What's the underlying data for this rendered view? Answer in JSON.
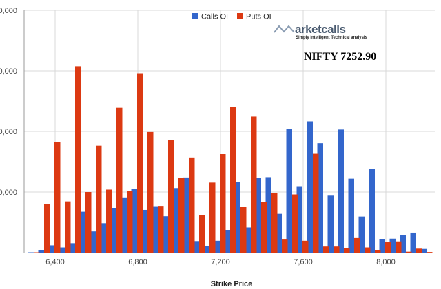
{
  "chart_data": {
    "type": "bar",
    "x": [
      6300,
      6350,
      6400,
      6450,
      6500,
      6550,
      6600,
      6650,
      6700,
      6750,
      6800,
      6850,
      6900,
      6950,
      7000,
      7050,
      7100,
      7150,
      7200,
      7250,
      7300,
      7350,
      7400,
      7450,
      7500,
      7550,
      7600,
      7650,
      7700,
      7750,
      7800,
      7850,
      7900,
      7950,
      8000,
      8050,
      8100,
      8150,
      8200,
      8250
    ],
    "series": [
      {
        "name": "Calls OI",
        "color": "#3366cc",
        "values": [
          0.11,
          0.9,
          2.4,
          1.7,
          3.1,
          13.5,
          7.0,
          9.7,
          14.7,
          18.0,
          21.0,
          14.1,
          15.1,
          12.0,
          21.3,
          24.8,
          3.8,
          2.2,
          3.9,
          7.5,
          23.4,
          8.3,
          24.7,
          24.9,
          12.8,
          40.8,
          21.7,
          43.3,
          36.1,
          18.8,
          40.6,
          24.4,
          11.9,
          27.6,
          4.4,
          4.6,
          5.9,
          6.6,
          1.2,
          1.6
        ]
      },
      {
        "name": "Puts OI",
        "color": "#dc3912",
        "values": [
          0.11,
          16.0,
          36.5,
          16.9,
          61.5,
          20.0,
          35.3,
          20.8,
          47.8,
          20.4,
          59.2,
          39.8,
          15.2,
          37.2,
          24.6,
          31.4,
          12.3,
          23.1,
          32.5,
          48.0,
          15.0,
          44.9,
          16.8,
          19.7,
          4.3,
          19.2,
          3.9,
          32.6,
          2.0,
          2.0,
          1.4,
          4.8,
          1.7,
          0.7,
          3.6,
          3.7,
          0.3,
          1.3,
          0.2,
          0.9
        ]
      }
    ],
    "xlabel": "Strike Price",
    "x_ticks": [
      "6,400",
      "6,800",
      "7,200",
      "7,600",
      "8,000"
    ],
    "y_ticks": [
      "0",
      "0,000",
      "0,000",
      "0,000",
      "0,000"
    ],
    "legend_position": "top",
    "grid": true
  },
  "watermark": {
    "logo_text": "arketcalls",
    "tagline": "Simply Intelligent Technical analysis",
    "logo_icon": "m-zigzag-icon"
  },
  "annotation": "NIFTY 7252.90"
}
